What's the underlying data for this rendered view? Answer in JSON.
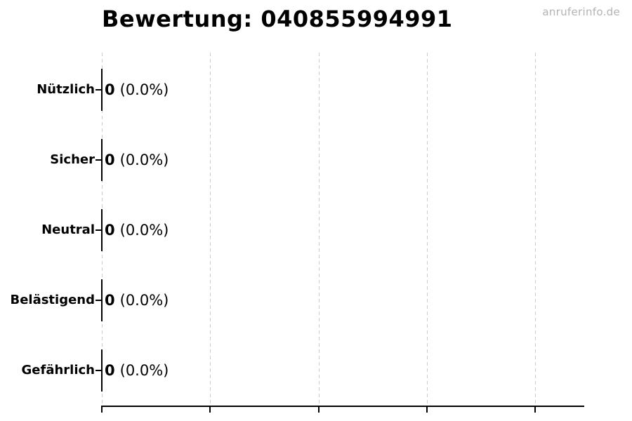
{
  "watermark": "anruferinfo.de",
  "chart_data": {
    "type": "bar",
    "orientation": "horizontal",
    "title": "Bewertung: 040855994991",
    "categories": [
      "Nützlich",
      "Sicher",
      "Neutral",
      "Belästigend",
      "Gefährlich"
    ],
    "values": [
      0,
      0,
      0,
      0,
      0
    ],
    "value_labels": [
      "0",
      "0",
      "0",
      "0",
      "0"
    ],
    "pct_labels": [
      "(0.0%)",
      "(0.0%)",
      "(0.0%)",
      "(0.0%)",
      "(0.0%)"
    ],
    "xlabel": "",
    "ylabel": "",
    "xlim": [
      0,
      4.45
    ],
    "x_gridline_values": [
      0,
      1,
      2,
      3,
      4
    ],
    "grid": true,
    "legend": false
  },
  "colors": {
    "background": "#ffffff",
    "grid": "#cccccc",
    "axis": "#000000",
    "text": "#000000",
    "watermark": "#b3b3b3"
  }
}
